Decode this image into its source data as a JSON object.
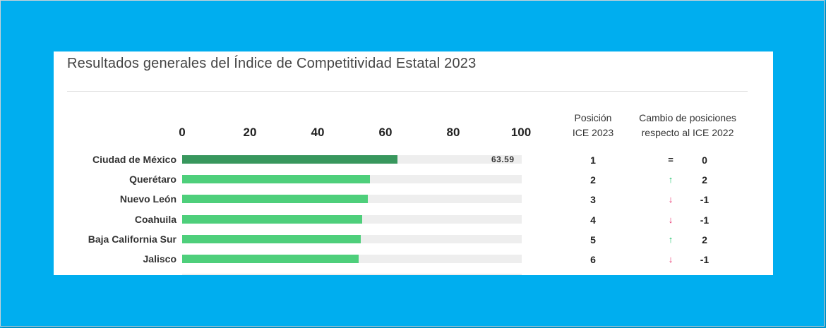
{
  "title": "Resultados generales del Índice de Competitividad Estatal 2023",
  "columns": {
    "position_header": [
      "Posición",
      "ICE 2023"
    ],
    "change_header": [
      "Cambio de posiciones",
      "respecto al ICE 2022"
    ]
  },
  "colors": {
    "bar_highlight": "#38975d",
    "bar_default": "#4ecf7b",
    "track": "#eeeeee",
    "up": "#1fc46b",
    "down": "#e8336e",
    "background": "#00aeef"
  },
  "chart_data": {
    "type": "bar",
    "orientation": "horizontal",
    "title": "Resultados generales del Índice de Competitividad Estatal 2023",
    "xlim": [
      0,
      100
    ],
    "x_ticks": [
      "0",
      "20",
      "40",
      "60",
      "80",
      "100"
    ],
    "categories": [
      "Ciudad de México",
      "Querétaro",
      "Nuevo León",
      "Coahuila",
      "Baja California Sur",
      "Jalisco"
    ],
    "values": [
      63.59,
      55.5,
      55.0,
      53.3,
      52.9,
      52.2
    ],
    "value_labels": [
      "63.59",
      "",
      "",
      "",
      "",
      ""
    ],
    "positions": [
      "1",
      "2",
      "3",
      "4",
      "5",
      "6"
    ],
    "change_symbols": [
      "=",
      "↑",
      "↓",
      "↓",
      "↑",
      "↓"
    ],
    "change_directions": [
      "same",
      "up",
      "down",
      "down",
      "up",
      "down"
    ],
    "changes": [
      "0",
      "2",
      "-1",
      "-1",
      "2",
      "-1"
    ]
  }
}
